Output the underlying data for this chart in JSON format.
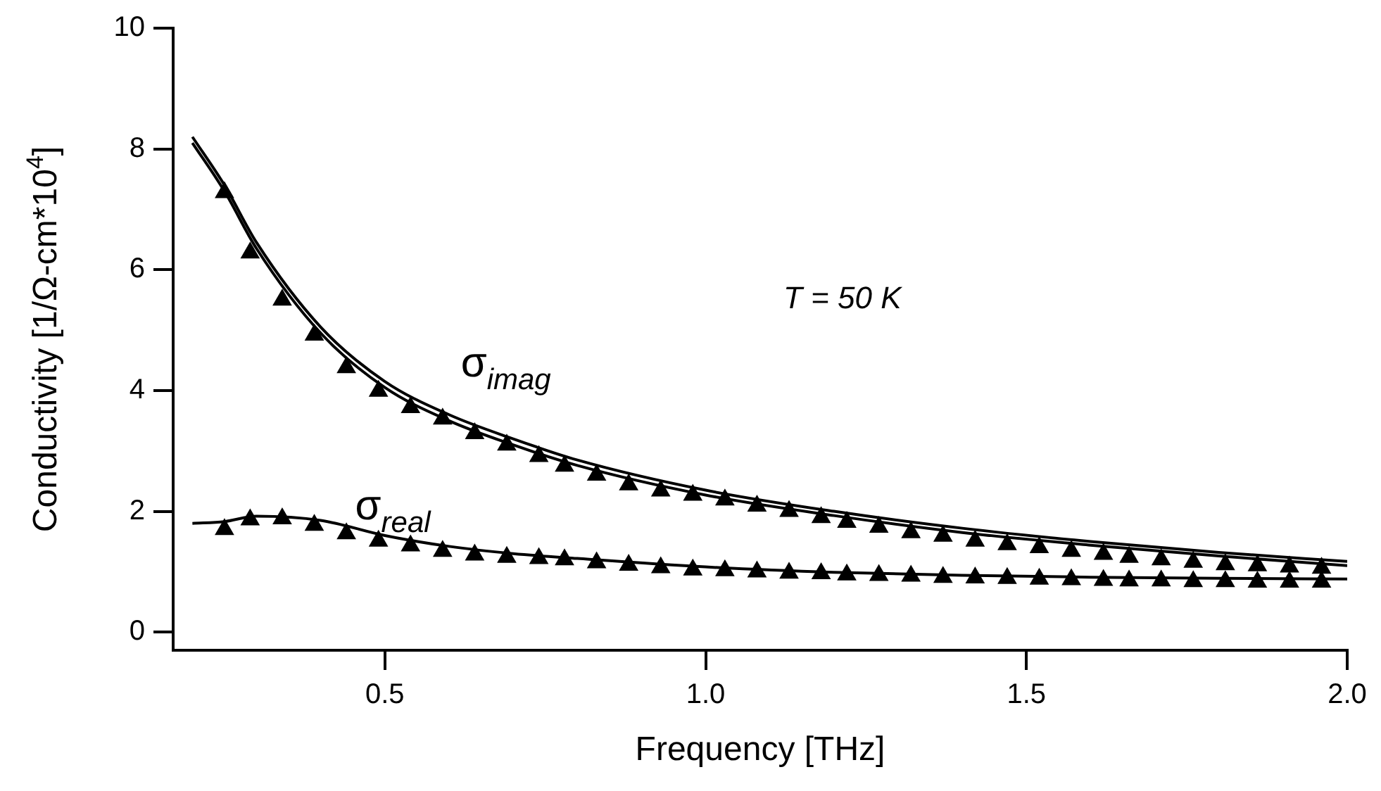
{
  "chart_data": {
    "type": "scatter",
    "xlabel": "Frequency [THz]",
    "ylabel": "Conductivity [1/Ω-cm*10$^{4}$]",
    "xlim": [
      0.17,
      2.0
    ],
    "xticks": [
      0.5,
      {
        "value": 1,
        "label": "1.0"
      },
      1.5,
      {
        "value": 2,
        "label": "2.0"
      }
    ],
    "ylim": [
      -0.3,
      10
    ],
    "yticks": [
      0,
      2,
      4,
      6,
      8,
      10
    ],
    "grid": false,
    "legend": false,
    "marker": "triangle",
    "x": [
      0.25,
      0.29,
      0.34,
      0.39,
      0.44,
      0.49,
      0.54,
      0.59,
      0.64,
      0.69,
      0.74,
      0.78,
      0.83,
      0.88,
      0.93,
      0.98,
      1.03,
      1.08,
      1.13,
      1.18,
      1.22,
      1.27,
      1.32,
      1.37,
      1.42,
      1.47,
      1.52,
      1.57,
      1.62,
      1.66,
      1.71,
      1.76,
      1.81,
      1.86,
      1.91,
      1.96
    ],
    "series": [
      {
        "color": "#000000",
        "values": [
          7.28,
          6.28,
          5.5,
          4.92,
          4.38,
          3.99,
          3.72,
          3.53,
          3.29,
          3.1,
          2.91,
          2.75,
          2.6,
          2.44,
          2.34,
          2.27,
          2.19,
          2.09,
          2.0,
          1.9,
          1.82,
          1.74,
          1.65,
          1.59,
          1.51,
          1.45,
          1.4,
          1.34,
          1.29,
          1.24,
          1.2,
          1.16,
          1.12,
          1.1,
          1.08,
          1.06
        ]
      },
      {
        "color": "#000000",
        "values": [
          1.7,
          1.86,
          1.88,
          1.77,
          1.63,
          1.51,
          1.43,
          1.34,
          1.28,
          1.24,
          1.22,
          1.2,
          1.15,
          1.11,
          1.07,
          1.03,
          1.02,
          1.0,
          0.98,
          0.97,
          0.95,
          0.94,
          0.93,
          0.91,
          0.9,
          0.89,
          0.88,
          0.87,
          0.86,
          0.85,
          0.85,
          0.84,
          0.84,
          0.83,
          0.83,
          0.83
        ]
      },
      {
        "type": "line",
        "color": "#000000",
        "marker": "none",
        "line_style": "solid",
        "x": [
          0.2,
          0.25,
          0.3,
          0.4,
          0.5,
          0.6,
          0.7,
          0.8,
          1.0,
          1.2,
          1.4,
          1.6,
          1.8,
          2.0
        ],
        "values": [
          8.2,
          7.4,
          6.45,
          5.05,
          4.15,
          3.6,
          3.2,
          2.85,
          2.35,
          2.0,
          1.72,
          1.5,
          1.32,
          1.17
        ]
      },
      {
        "type": "line",
        "color": "#000000",
        "marker": "none",
        "line_style": "solid",
        "x": [
          0.2,
          0.25,
          0.3,
          0.4,
          0.5,
          0.6,
          0.7,
          0.8,
          1.0,
          1.2,
          1.4,
          1.6,
          1.8,
          2.0
        ],
        "values": [
          8.1,
          7.3,
          6.35,
          4.95,
          4.05,
          3.5,
          3.1,
          2.76,
          2.27,
          1.93,
          1.65,
          1.44,
          1.26,
          1.1
        ]
      },
      {
        "type": "line",
        "color": "#000000",
        "marker": "none",
        "line_style": "solid",
        "x": [
          0.2,
          0.25,
          0.3,
          0.4,
          0.5,
          0.6,
          0.7,
          0.8,
          1.0,
          1.2,
          1.4,
          1.6,
          1.8,
          2.0
        ],
        "values": [
          1.8,
          1.83,
          1.92,
          1.85,
          1.6,
          1.42,
          1.3,
          1.22,
          1.08,
          0.99,
          0.94,
          0.91,
          0.89,
          0.88
        ]
      }
    ],
    "annotations": [
      "σ$_{imag}$",
      "σ$_{real}$",
      "T = 50 K"
    ]
  }
}
